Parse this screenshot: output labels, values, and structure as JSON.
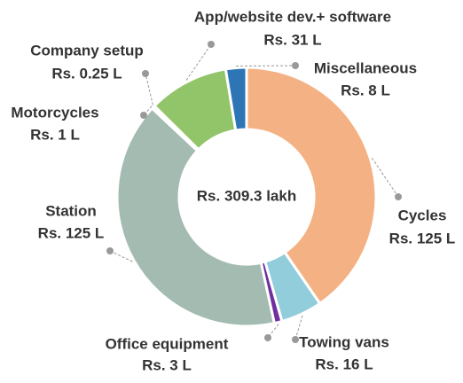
{
  "chart_data": {
    "type": "donut",
    "center_label": "Rs. 309.3 lakh",
    "categories": [
      "Cycles",
      "Towing vans",
      "Office equipment",
      "Station",
      "Motorcycles",
      "Company setup",
      "App/website dev.+ software",
      "Miscellaneous"
    ],
    "values": [
      125,
      16,
      3,
      125,
      1,
      0.25,
      31,
      8
    ],
    "value_labels": [
      "Rs. 125 L",
      "Rs. 16 L",
      "Rs. 3 L",
      "Rs. 125 L",
      "Rs. 1 L",
      "Rs. 0.25 L",
      "Rs. 31 L",
      "Rs. 8 L"
    ],
    "colors": [
      "#f4b183",
      "#92cddc",
      "#7030a0",
      "#a3bbb0",
      "#f0a030",
      "#ffc000",
      "#92c46a",
      "#2e75b6"
    ]
  }
}
